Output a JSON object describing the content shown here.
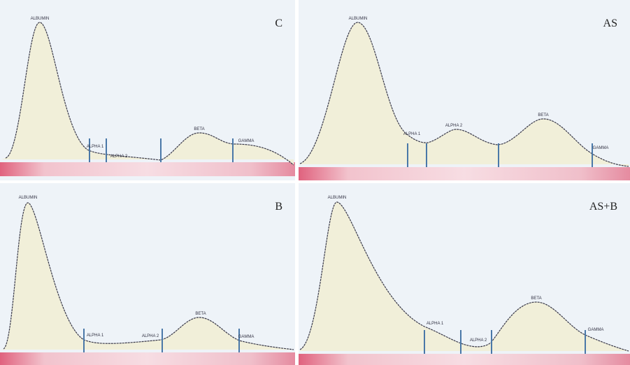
{
  "panels": [
    {
      "label": "C",
      "peaks": [
        "ALBUMIN",
        "ALPHA 1",
        "ALPHA 2",
        "BETA",
        "GAMMA"
      ]
    },
    {
      "label": "AS",
      "peaks": [
        "ALBUMIN",
        "ALPHA 1",
        "ALPHA 2",
        "BETA",
        "GAMMA"
      ]
    },
    {
      "label": "B",
      "peaks": [
        "ALBUMIN",
        "ALPHA 1",
        "ALPHA 2",
        "BETA",
        "GAMMA"
      ]
    },
    {
      "label": "AS+B",
      "peaks": [
        "ALBUMIN",
        "ALPHA 1",
        "ALPHA 2",
        "BETA",
        "GAMMA"
      ]
    }
  ]
}
